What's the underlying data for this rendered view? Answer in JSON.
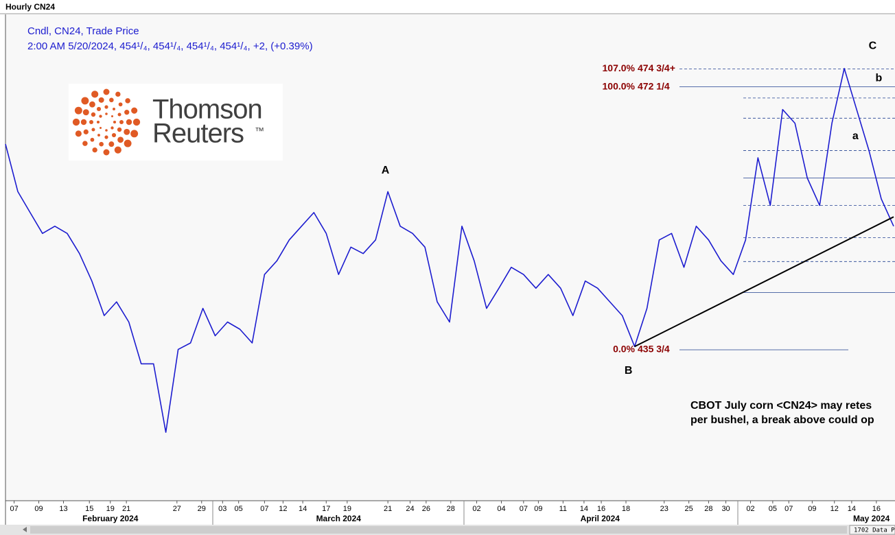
{
  "chart_data": {
    "type": "line",
    "title": "Hourly CN24",
    "quote": "2:00 AM 5/20/2024, 454¹/₄, 454¹/₄, 454¹/₄, 454¹/₄, +2, (+0.39%)",
    "xlim": [
      0,
      72
    ],
    "ylim": [
      414.8,
      482.4
    ],
    "xticks": [
      {
        "value": 0.7,
        "label": "07"
      },
      {
        "value": 2.7,
        "label": "09"
      },
      {
        "value": 4.7,
        "label": "13"
      },
      {
        "value": 6.8,
        "label": "15"
      },
      {
        "value": 8.5,
        "label": "19"
      },
      {
        "value": 9.8,
        "label": "21"
      },
      {
        "value": 13.9,
        "label": "27"
      },
      {
        "value": 15.9,
        "label": "29"
      },
      {
        "value": 17.6,
        "label": "03"
      },
      {
        "value": 18.9,
        "label": "05"
      },
      {
        "value": 21.0,
        "label": "07"
      },
      {
        "value": 22.5,
        "label": "12"
      },
      {
        "value": 24.1,
        "label": "14"
      },
      {
        "value": 26.0,
        "label": "17"
      },
      {
        "value": 27.7,
        "label": "19"
      },
      {
        "value": 31.0,
        "label": "21"
      },
      {
        "value": 32.8,
        "label": "24"
      },
      {
        "value": 34.1,
        "label": "26"
      },
      {
        "value": 36.1,
        "label": "28"
      },
      {
        "value": 38.2,
        "label": "02"
      },
      {
        "value": 40.2,
        "label": "04"
      },
      {
        "value": 42.0,
        "label": "07"
      },
      {
        "value": 43.2,
        "label": "09"
      },
      {
        "value": 45.2,
        "label": "11"
      },
      {
        "value": 46.9,
        "label": "14"
      },
      {
        "value": 48.3,
        "label": "16"
      },
      {
        "value": 50.3,
        "label": "18"
      },
      {
        "value": 53.4,
        "label": "23"
      },
      {
        "value": 55.4,
        "label": "25"
      },
      {
        "value": 57.0,
        "label": "28"
      },
      {
        "value": 58.4,
        "label": "30"
      },
      {
        "value": 60.4,
        "label": "02"
      },
      {
        "value": 62.2,
        "label": "05"
      },
      {
        "value": 63.5,
        "label": "07"
      },
      {
        "value": 65.4,
        "label": "09"
      },
      {
        "value": 67.2,
        "label": "12"
      },
      {
        "value": 68.6,
        "label": "14"
      },
      {
        "value": 70.6,
        "label": "16"
      }
    ],
    "month_labels": [
      {
        "value": 8.5,
        "label": "February 2024"
      },
      {
        "value": 27.0,
        "label": "March 2024"
      },
      {
        "value": 48.2,
        "label": "April 2024"
      },
      {
        "value": 70.2,
        "label": "May 2024"
      }
    ],
    "series": [
      {
        "name": "Cndl, CN24, Trade Price",
        "color": "#1c1ccf",
        "x": [
          0,
          1,
          2,
          3,
          4,
          5,
          6,
          7,
          8,
          9,
          10,
          11,
          12,
          13,
          14,
          15,
          16,
          17,
          18,
          19,
          20,
          21,
          22,
          23,
          24,
          25,
          26,
          27,
          28,
          29,
          30,
          31,
          32,
          33,
          34,
          35,
          36,
          37,
          38,
          39,
          40,
          41,
          42,
          43,
          44,
          45,
          46,
          47,
          48,
          49,
          50,
          51,
          52,
          53,
          54,
          55,
          56,
          57,
          58,
          59,
          60,
          61,
          62,
          63,
          64,
          65,
          66,
          67,
          68,
          69,
          70,
          71,
          72
        ],
        "values": [
          464.3,
          457.7,
          454.8,
          451.9,
          452.9,
          451.9,
          449.1,
          445.3,
          440.5,
          442.4,
          439.6,
          433.8,
          433.8,
          424.3,
          435.8,
          436.7,
          441.5,
          437.7,
          439.6,
          438.6,
          436.7,
          446.2,
          448.1,
          451.0,
          452.9,
          454.8,
          451.9,
          446.2,
          450.0,
          449.1,
          451.0,
          457.7,
          452.9,
          451.9,
          450.0,
          442.4,
          439.6,
          452.9,
          448.1,
          441.5,
          444.3,
          447.2,
          446.2,
          444.3,
          446.2,
          444.3,
          440.5,
          445.3,
          444.3,
          442.4,
          440.5,
          436.2,
          441.5,
          451.0,
          451.9,
          447.2,
          452.9,
          451.0,
          448.1,
          446.2,
          451.0,
          462.4,
          455.8,
          469.1,
          467.2,
          459.6,
          455.8,
          467.2,
          474.8,
          469.1,
          463.4,
          456.7,
          452.9
        ]
      }
    ],
    "fib_levels": [
      {
        "value": 474.75,
        "pct_label": "107.0%",
        "price_label": "474 3/4+",
        "dash": true
      },
      {
        "value": 472.25,
        "pct_label": "100.0%",
        "price_label": "472 1/4",
        "dash": false
      },
      {
        "value": 470.7,
        "dash": true
      },
      {
        "value": 467.9,
        "dash": true
      },
      {
        "value": 463.4,
        "dash": true
      },
      {
        "value": 459.6,
        "dash": false
      },
      {
        "value": 455.8,
        "dash": true
      },
      {
        "value": 451.3,
        "dash": true
      },
      {
        "value": 448.0,
        "dash": true
      },
      {
        "value": 443.7,
        "dash": false
      },
      {
        "value": 435.75,
        "pct_label": "0.0%",
        "price_label": "435 3/4",
        "dash": false
      }
    ],
    "trendline": {
      "x": [
        51.0,
        72
      ],
      "values": [
        436.2,
        454.2
      ],
      "color": "#000000"
    },
    "wave_labels": [
      {
        "label": "A",
        "x": 30.8,
        "y": 460.6
      },
      {
        "label": "B",
        "x": 50.5,
        "y": 432.8
      },
      {
        "label": "C",
        "x": 70.3,
        "y": 477.9
      },
      {
        "label": "a",
        "x": 68.9,
        "y": 465.4
      },
      {
        "label": "b",
        "x": 70.8,
        "y": 473.4
      }
    ],
    "note_lines": [
      "CBOT July corn <CN24> may retes",
      "per bushel, a break above could op"
    ],
    "logo": {
      "line1": "Thomson",
      "line2": "Reuters",
      "mark": "™"
    },
    "status": "1702 Data P"
  }
}
